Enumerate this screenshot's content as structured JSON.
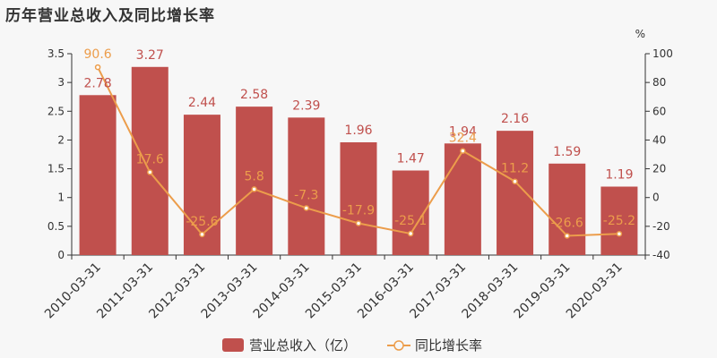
{
  "title": "历年营业总收入及同比增长率",
  "colors": {
    "bar": "#c0504d",
    "line": "#ec9d4b"
  },
  "chart_data": {
    "type": "bar",
    "title": "历年营业总收入及同比增长率",
    "categories": [
      "2010-03-31",
      "2011-03-31",
      "2012-03-31",
      "2013-03-31",
      "2014-03-31",
      "2015-03-31",
      "2016-03-31",
      "2017-03-31",
      "2018-03-31",
      "2019-03-31",
      "2020-03-31"
    ],
    "series": [
      {
        "name": "营业总收入（亿）",
        "type": "bar",
        "axis": "left",
        "values": [
          2.78,
          3.27,
          2.44,
          2.58,
          2.39,
          1.96,
          1.47,
          1.94,
          2.16,
          1.59,
          1.19
        ]
      },
      {
        "name": "同比增长率",
        "type": "line",
        "axis": "right",
        "values": [
          90.6,
          17.6,
          -25.6,
          5.8,
          -7.3,
          -17.9,
          -25.1,
          32.4,
          11.2,
          -26.6,
          -25.2
        ]
      }
    ],
    "y_left": {
      "range": [
        0,
        3.5
      ],
      "ticks": [
        "0",
        "0.5",
        "1",
        "1.5",
        "2",
        "2.5",
        "3",
        "3.5"
      ]
    },
    "y_right": {
      "range": [
        -40,
        100
      ],
      "unit": "%",
      "ticks": [
        "-40",
        "-20",
        "0",
        "20",
        "40",
        "60",
        "80",
        "100"
      ]
    },
    "grid": false,
    "legend": "bottom-center"
  }
}
